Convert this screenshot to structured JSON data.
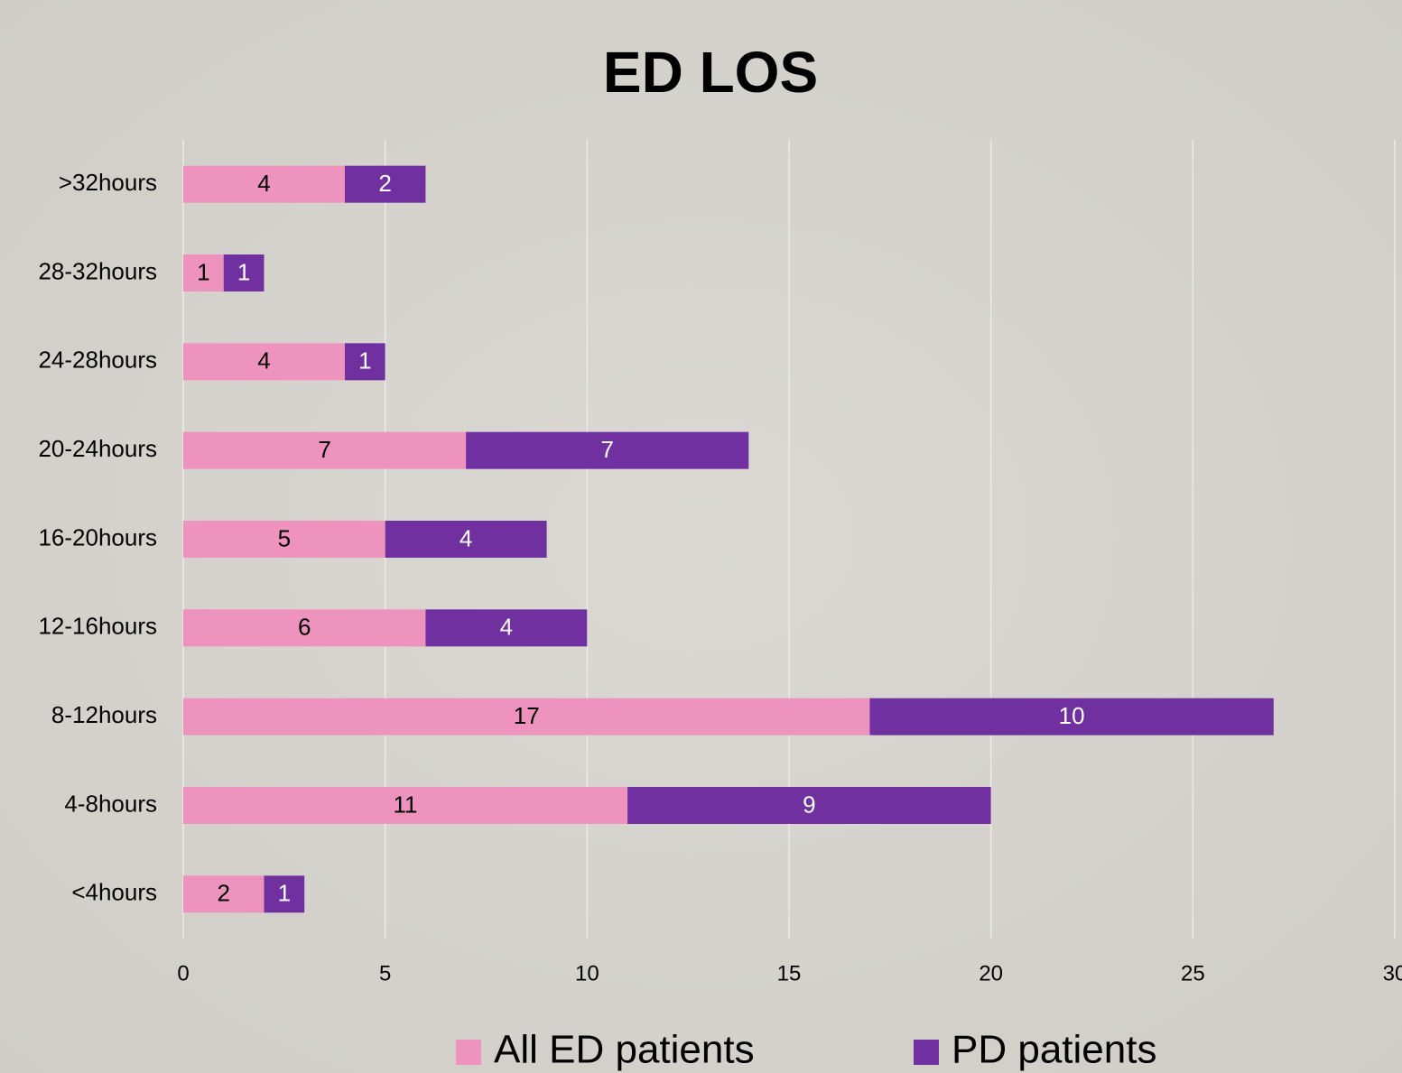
{
  "chart_data": {
    "type": "stacked_barh",
    "title": "ED LOS",
    "categories": [
      ">32hours",
      "28-32hours",
      "24-28hours",
      "20-24hours",
      "16-20hours",
      "12-16hours",
      "8-12hours",
      "4-8hours",
      "<4hours"
    ],
    "series": [
      {
        "name": "All ED patients",
        "color": "#ee93bd",
        "label_color": "#000000",
        "values": [
          4,
          1,
          4,
          7,
          5,
          6,
          17,
          11,
          2
        ]
      },
      {
        "name": "PD patients",
        "color": "#7030a0",
        "label_color": "#ffffff",
        "values": [
          2,
          1,
          1,
          7,
          4,
          4,
          10,
          9,
          1
        ]
      }
    ],
    "xlim": [
      0,
      30
    ],
    "xticks": [
      0,
      5,
      10,
      15,
      20,
      25,
      30
    ],
    "grid": true,
    "legend": "bottom"
  }
}
